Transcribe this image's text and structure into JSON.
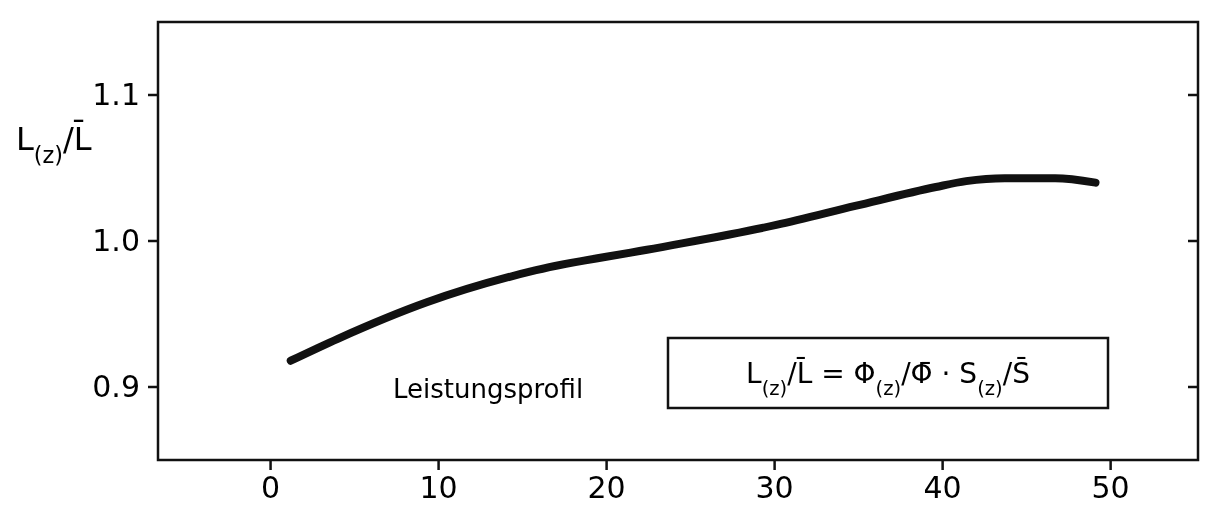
{
  "chart_data": {
    "type": "line",
    "ylabel": "L$_{(z)}$/L̄",
    "x": [
      1.2,
      4,
      9.3,
      15.8,
      22.4,
      30.1,
      34.8,
      39.6,
      41.4,
      43.7,
      46.7,
      49.1
    ],
    "series": [
      {
        "color": "#111111",
        "values": [
          0.918,
          0.933,
          0.958,
          0.98,
          0.994,
          1.011,
          1.024,
          1.037,
          1.041,
          1.043,
          1.043,
          1.04
        ]
      }
    ],
    "xlim": [
      -6.7,
      55.2
    ],
    "xticks": [
      0,
      10,
      20,
      30,
      40,
      50
    ],
    "ylim": [
      0.85,
      1.15
    ],
    "yticks": [
      {
        "value": 0.9,
        "label": "0.9"
      },
      {
        "value": 1.0,
        "label": "1.0"
      },
      {
        "value": 1.1,
        "label": "1.1"
      }
    ],
    "grid": false,
    "marker": "none",
    "line_style": "solid",
    "annotations": [
      "Leistungsprofil",
      "L$_{(z)}$/L̄ = Φ$_{(z)}$/Φ̄ · S$_{(z)}$/S̄"
    ]
  }
}
